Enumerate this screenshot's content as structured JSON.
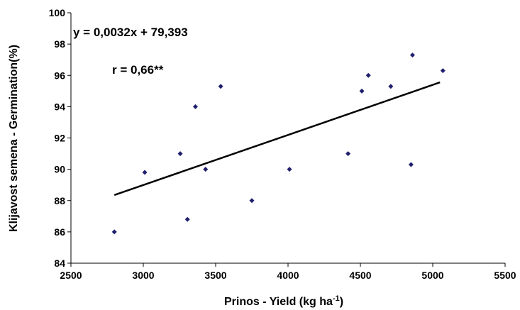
{
  "chart_data": {
    "type": "scatter",
    "xlabel": "Prinos - Yield (kg ha",
    "xlabel_sup": "-1",
    "xlabel_end": ")",
    "ylabel": "Klijavost semena - Germination(%)",
    "xlim": [
      2500,
      5500
    ],
    "ylim": [
      84,
      100
    ],
    "x_ticks": [
      2500,
      3000,
      3500,
      4000,
      4500,
      5000,
      5500
    ],
    "y_ticks": [
      84,
      86,
      88,
      90,
      92,
      94,
      96,
      98,
      100
    ],
    "grid": false,
    "legend": "none",
    "marker_color": "#1f1f6e",
    "line_color": "#000000",
    "points": [
      {
        "x": 2800,
        "y": 86.0
      },
      {
        "x": 3010,
        "y": 89.8
      },
      {
        "x": 3255,
        "y": 91.0
      },
      {
        "x": 3305,
        "y": 86.8
      },
      {
        "x": 3360,
        "y": 94.0
      },
      {
        "x": 3430,
        "y": 90.0
      },
      {
        "x": 3535,
        "y": 95.3
      },
      {
        "x": 3750,
        "y": 88.0
      },
      {
        "x": 4010,
        "y": 90.0
      },
      {
        "x": 4415,
        "y": 91.0
      },
      {
        "x": 4510,
        "y": 95.0
      },
      {
        "x": 4555,
        "y": 96.0
      },
      {
        "x": 4710,
        "y": 95.3
      },
      {
        "x": 4850,
        "y": 90.3
      },
      {
        "x": 4860,
        "y": 97.3
      },
      {
        "x": 5070,
        "y": 96.3
      }
    ],
    "trendline": {
      "slope": 0.0032,
      "intercept": 79.393,
      "x_range": [
        2800,
        5050
      ]
    },
    "annotations": {
      "equation": "y = 0,0032x + 79,393",
      "correlation": "r = 0,66**"
    }
  }
}
